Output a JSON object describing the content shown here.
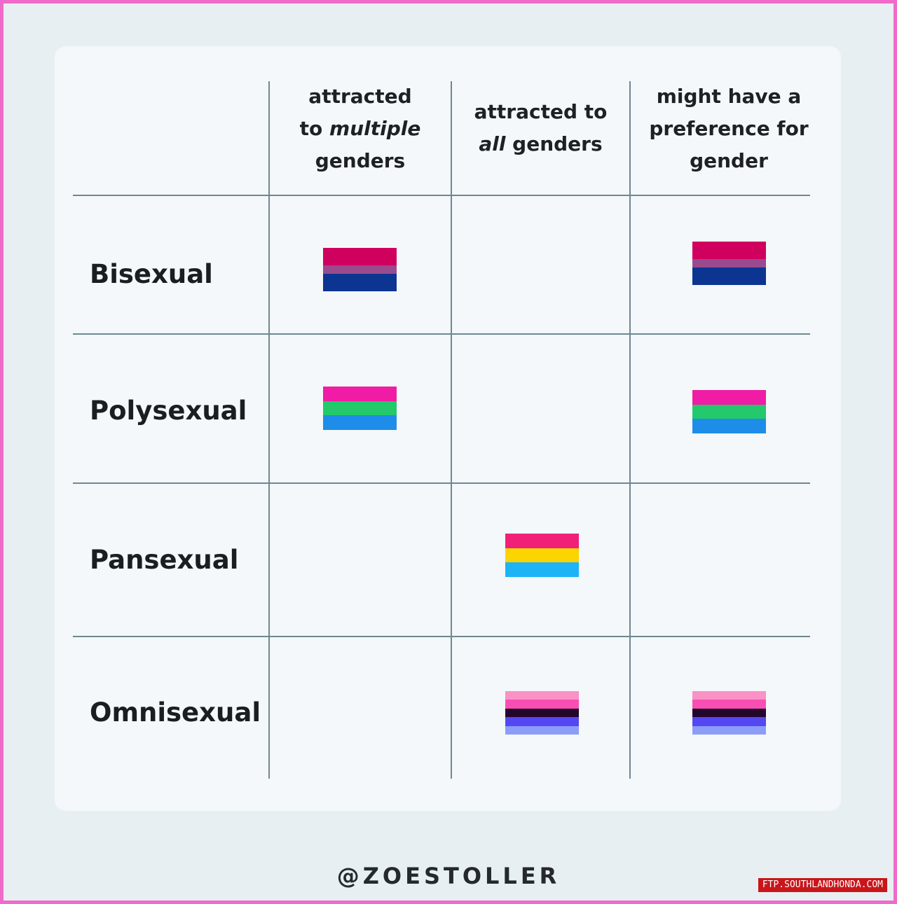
{
  "columns": [
    {
      "line1": "attracted",
      "line2a": "to ",
      "line2em": "multiple",
      "line2b": "",
      "line3": "genders"
    },
    {
      "line1": "attracted to",
      "line2a": "",
      "line2em": "all",
      "line2b": " genders"
    },
    {
      "line1": "might have a",
      "line2a": "preference for",
      "line2em": "",
      "line2b": "",
      "line3": "gender"
    }
  ],
  "rows": [
    {
      "label": "Bisexual"
    },
    {
      "label": "Polysexual"
    },
    {
      "label": "Pansexual"
    },
    {
      "label": "Omnisexual"
    }
  ],
  "flags": {
    "bisexual": [
      "#d0005f",
      "#9a4a8e",
      "#0b3591"
    ],
    "polysexual": [
      "#f01ca5",
      "#23c96a",
      "#1d8de9"
    ],
    "pansexual": [
      "#f02079",
      "#fcd400",
      "#1eb3f6"
    ],
    "omnisexual": [
      "#fa92c6",
      "#f94fb4",
      "#24062d",
      "#5448f2",
      "#8c9cf9"
    ]
  },
  "footer": "@ZOESTOLLER",
  "watermark": "FTP.SOUTHLANDHONDA.COM"
}
